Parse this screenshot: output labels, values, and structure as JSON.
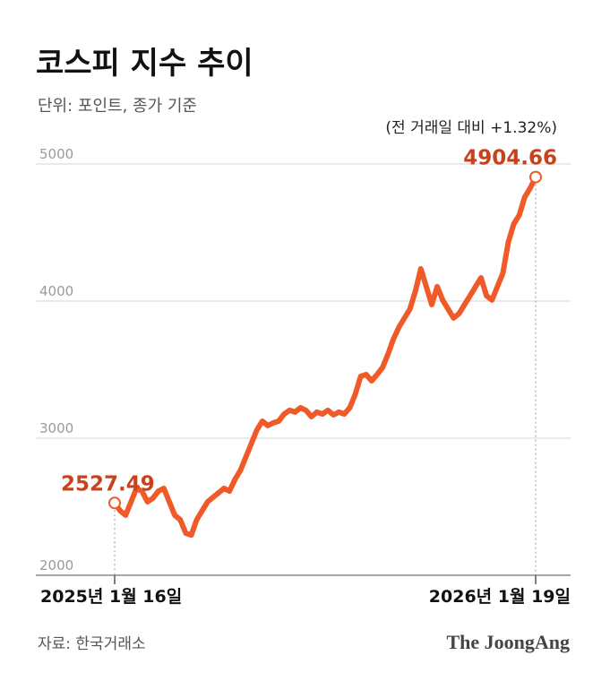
{
  "chart_data": {
    "type": "line",
    "title": "코스피 지수 추이",
    "subtitle": "단위: 포인트, 종가 기준",
    "annotation": "(전 거래일 대비 +1.32%)",
    "source": "자료: 한국거래소",
    "logo": "The JoongAng",
    "color": "#f05a28",
    "label_color": "#c8421b",
    "grid": true,
    "ylim": [
      2000,
      5000
    ],
    "yticks": [
      2000,
      3000,
      4000,
      5000
    ],
    "categories": [
      "2025년 1월 16일",
      null,
      null,
      null,
      null,
      null,
      null,
      null,
      null,
      null,
      null,
      null,
      null,
      null,
      null,
      null,
      null,
      null,
      null,
      null,
      null,
      null,
      null,
      null,
      null,
      null,
      null,
      null,
      null,
      null,
      null,
      null,
      null,
      null,
      null,
      null,
      null,
      null,
      null,
      null,
      null,
      null,
      null,
      null,
      null,
      null,
      null,
      null,
      null,
      null,
      null,
      null,
      null,
      null,
      null,
      null,
      null,
      null,
      null,
      null,
      null,
      null,
      null,
      null,
      null,
      null,
      null,
      null,
      null,
      null,
      null,
      null,
      null,
      null,
      null,
      null,
      null,
      "2026년 1월 19일"
    ],
    "values": [
      2527.49,
      2471,
      2438,
      2536,
      2634,
      2614,
      2536,
      2562,
      2614,
      2634,
      2536,
      2438,
      2405,
      2307,
      2293,
      2405,
      2471,
      2536,
      2569,
      2601,
      2634,
      2614,
      2699,
      2765,
      2863,
      2961,
      3059,
      3124,
      3092,
      3111,
      3124,
      3176,
      3203,
      3190,
      3222,
      3203,
      3157,
      3190,
      3176,
      3203,
      3170,
      3190,
      3176,
      3222,
      3320,
      3451,
      3464,
      3418,
      3464,
      3516,
      3614,
      3725,
      3810,
      3876,
      3941,
      4072,
      4235,
      4105,
      3974,
      4105,
      4007,
      3941,
      3876,
      3909,
      3974,
      4039,
      4105,
      4170,
      4039,
      4007,
      4105,
      4203,
      4431,
      4562,
      4627,
      4758,
      4824,
      4904.66
    ]
  }
}
